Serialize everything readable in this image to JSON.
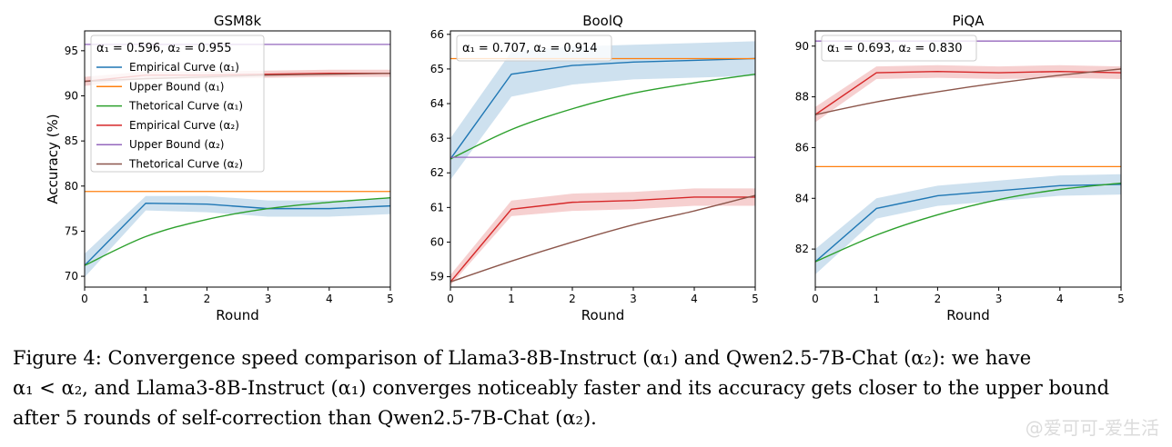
{
  "chart_data": [
    {
      "type": "line",
      "title": "GSM8k",
      "xlabel": "Round",
      "ylabel": "Accuracy (%)",
      "xlim": [
        0,
        5
      ],
      "ylim": [
        68.8,
        97.2
      ],
      "x": [
        0,
        1,
        2,
        3,
        4,
        5
      ],
      "xticks": [
        "0",
        "1",
        "2",
        "3",
        "4",
        "5"
      ],
      "yticks": [
        70,
        75,
        80,
        85,
        90,
        95
      ],
      "annotation": "α₁ = 0.596, α₂ = 0.955",
      "legend": {
        "placement": "top-left",
        "entries": [
          "Empirical Curve (α₁)",
          "Upper Bound (α₁)",
          "Thetorical Curve (α₁)",
          "Empirical Curve (α₂)",
          "Upper Bound (α₂)",
          "Thetorical Curve (α₂)"
        ]
      },
      "series": [
        {
          "name": "Empirical Curve (α₁)",
          "color": "#1f77b4",
          "kind": "line",
          "values": [
            71.2,
            78.1,
            78.0,
            77.5,
            77.5,
            77.8
          ],
          "band": [
            [
              69.9,
              72.5
            ],
            [
              77.3,
              78.9
            ],
            [
              77.1,
              78.9
            ],
            [
              76.6,
              78.4
            ],
            [
              76.6,
              78.4
            ],
            [
              76.9,
              78.7
            ]
          ],
          "band_color": "#1f77b4"
        },
        {
          "name": "Upper Bound (α₁)",
          "color": "#ff7f0e",
          "kind": "hline",
          "value": 79.4
        },
        {
          "name": "Thetorical Curve (α₁)",
          "color": "#2ca02c",
          "kind": "line",
          "values": [
            71.2,
            74.4,
            76.3,
            77.5,
            78.2,
            78.7
          ]
        },
        {
          "name": "Empirical Curve (α₂)",
          "color": "#d62728",
          "kind": "line",
          "values": [
            91.6,
            92.3,
            92.3,
            92.4,
            92.5,
            92.5
          ],
          "band": [
            [
              91.1,
              92.1
            ],
            [
              91.9,
              92.7
            ],
            [
              91.9,
              92.7
            ],
            [
              92.0,
              92.8
            ],
            [
              92.1,
              92.9
            ],
            [
              92.1,
              92.9
            ]
          ],
          "band_color": "#d62728"
        },
        {
          "name": "Upper Bound (α₂)",
          "color": "#9467bd",
          "kind": "hline",
          "value": 95.7
        },
        {
          "name": "Thetorical Curve (α₂)",
          "color": "#8c564b",
          "kind": "line",
          "values": [
            91.6,
            91.9,
            92.1,
            92.3,
            92.4,
            92.5
          ]
        }
      ]
    },
    {
      "type": "line",
      "title": "BoolQ",
      "xlabel": "Round",
      "ylabel": "",
      "xlim": [
        0,
        5
      ],
      "ylim": [
        58.7,
        66.1
      ],
      "x": [
        0,
        1,
        2,
        3,
        4,
        5
      ],
      "xticks": [
        "0",
        "1",
        "2",
        "3",
        "4",
        "5"
      ],
      "yticks": [
        59,
        60,
        61,
        62,
        63,
        64,
        65,
        66
      ],
      "annotation": "α₁ = 0.707, α₂ = 0.914",
      "series": [
        {
          "name": "Empirical Curve (α₁)",
          "color": "#1f77b4",
          "kind": "line",
          "values": [
            62.4,
            64.85,
            65.1,
            65.2,
            65.25,
            65.3
          ],
          "band": [
            [
              61.8,
              63.0
            ],
            [
              64.2,
              65.5
            ],
            [
              64.55,
              65.65
            ],
            [
              64.7,
              65.7
            ],
            [
              64.75,
              65.75
            ],
            [
              64.8,
              65.8
            ]
          ],
          "band_color": "#1f77b4"
        },
        {
          "name": "Upper Bound (α₁)",
          "color": "#ff7f0e",
          "kind": "hline",
          "value": 65.3
        },
        {
          "name": "Thetorical Curve (α₁)",
          "color": "#2ca02c",
          "kind": "line",
          "values": [
            62.4,
            63.25,
            63.85,
            64.3,
            64.6,
            64.85
          ]
        },
        {
          "name": "Empirical Curve (α₂)",
          "color": "#d62728",
          "kind": "line",
          "values": [
            58.85,
            60.95,
            61.15,
            61.2,
            61.3,
            61.3
          ],
          "band": [
            [
              58.75,
              59.05
            ],
            [
              60.75,
              61.2
            ],
            [
              60.9,
              61.4
            ],
            [
              60.95,
              61.45
            ],
            [
              61.05,
              61.55
            ],
            [
              61.05,
              61.55
            ]
          ],
          "band_color": "#d62728"
        },
        {
          "name": "Upper Bound (α₂)",
          "color": "#9467bd",
          "kind": "hline",
          "value": 62.45
        },
        {
          "name": "Thetorical Curve (α₂)",
          "color": "#8c564b",
          "kind": "line",
          "values": [
            58.85,
            59.45,
            60.0,
            60.5,
            60.9,
            61.35
          ]
        }
      ]
    },
    {
      "type": "line",
      "title": "PiQA",
      "xlabel": "Round",
      "ylabel": "",
      "xlim": [
        0,
        5
      ],
      "ylim": [
        80.5,
        90.6
      ],
      "x": [
        0,
        1,
        2,
        3,
        4,
        5
      ],
      "xticks": [
        "0",
        "1",
        "2",
        "3",
        "4",
        "5"
      ],
      "yticks": [
        82,
        84,
        86,
        88,
        90
      ],
      "annotation": "α₁ = 0.693, α₂ = 0.830",
      "series": [
        {
          "name": "Empirical Curve (α₁)",
          "color": "#1f77b4",
          "kind": "line",
          "values": [
            81.5,
            83.6,
            84.1,
            84.3,
            84.5,
            84.55
          ],
          "band": [
            [
              81.0,
              82.0
            ],
            [
              83.2,
              84.0
            ],
            [
              83.7,
              84.5
            ],
            [
              83.9,
              84.7
            ],
            [
              84.1,
              84.9
            ],
            [
              84.15,
              84.95
            ]
          ],
          "band_color": "#1f77b4"
        },
        {
          "name": "Upper Bound (α₁)",
          "color": "#ff7f0e",
          "kind": "hline",
          "value": 85.25
        },
        {
          "name": "Thetorical Curve (α₁)",
          "color": "#2ca02c",
          "kind": "line",
          "values": [
            81.5,
            82.55,
            83.35,
            83.95,
            84.35,
            84.6
          ]
        },
        {
          "name": "Empirical Curve (α₂)",
          "color": "#d62728",
          "kind": "line",
          "values": [
            87.3,
            88.95,
            89.0,
            88.95,
            89.0,
            88.95
          ],
          "band": [
            [
              87.0,
              87.6
            ],
            [
              88.7,
              89.2
            ],
            [
              88.75,
              89.25
            ],
            [
              88.7,
              89.2
            ],
            [
              88.75,
              89.25
            ],
            [
              88.7,
              89.2
            ]
          ],
          "band_color": "#d62728"
        },
        {
          "name": "Upper Bound (α₂)",
          "color": "#9467bd",
          "kind": "hline",
          "value": 90.2
        },
        {
          "name": "Thetorical Curve (α₂)",
          "color": "#8c564b",
          "kind": "line",
          "values": [
            87.3,
            87.8,
            88.2,
            88.55,
            88.85,
            89.1
          ]
        }
      ]
    }
  ],
  "caption": {
    "line1": "Figure 4: Convergence speed comparison of Llama3-8B-Instruct (α₁) and Qwen2.5-7B-Chat (α₂): we have",
    "line2": "α₁ < α₂, and Llama3-8B-Instruct (α₁) converges noticeably faster and its accuracy gets closer to the upper bound",
    "line3": "after 5 rounds of self-correction than Qwen2.5-7B-Chat (α₂)."
  },
  "watermark": "@爱可可-爱生活"
}
